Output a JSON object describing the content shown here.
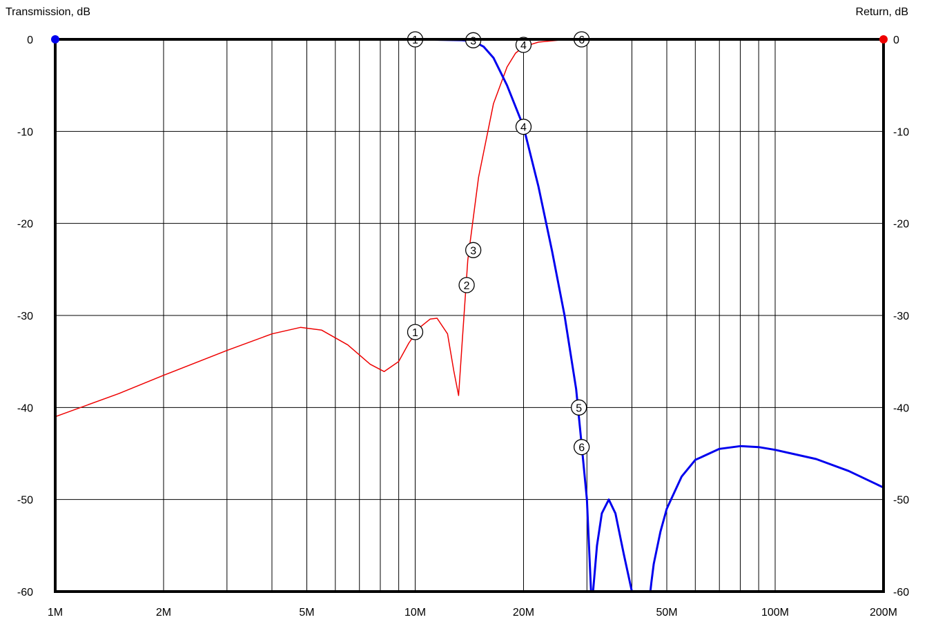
{
  "chart_data": {
    "type": "line",
    "title": "",
    "x_scale": "log",
    "xlim": [
      1000000,
      200000000
    ],
    "ylim": [
      -60,
      0
    ],
    "left_axis_label": "Transmission, dB",
    "right_axis_label": "Return, dB",
    "grid": true,
    "x_tick_values": [
      1000000,
      2000000,
      5000000,
      10000000,
      20000000,
      50000000,
      100000000,
      200000000
    ],
    "x_tick_labels": [
      "1M",
      "2M",
      "5M",
      "10M",
      "20M",
      "50M",
      "100M",
      "200M"
    ],
    "y_tick_values": [
      0,
      -10,
      -20,
      -30,
      -40,
      -50,
      -60
    ],
    "y_tick_labels": [
      "0",
      "-10",
      "-20",
      "-30",
      "-40",
      "-50",
      "-60"
    ],
    "series": [
      {
        "name": "transmission",
        "color": "#0000ee",
        "axis": "left",
        "x": [
          1000000,
          10000000,
          12000000,
          13500000,
          14500000,
          15500000,
          16500000,
          18000000,
          20000000,
          22000000,
          24000000,
          26000000,
          28000000,
          29000000,
          30000000,
          30800000,
          31200000,
          32000000,
          33000000,
          34500000,
          36000000,
          38000000,
          40000000,
          41000000,
          41200000,
          45000000,
          45300000,
          46000000,
          48000000,
          50000000,
          55000000,
          60000000,
          70000000,
          80000000,
          90000000,
          100000000,
          130000000,
          160000000,
          200000000
        ],
        "y": [
          0,
          0,
          -0.05,
          -0.1,
          -0.2,
          -0.8,
          -2,
          -5,
          -9.5,
          -16,
          -23,
          -30,
          -38,
          -44,
          -50,
          -60,
          -60,
          -55,
          -51.5,
          -50,
          -51.5,
          -56,
          -60,
          -60,
          -60,
          -60,
          -59,
          -57,
          -53.5,
          -51,
          -47.5,
          -45.7,
          -44.5,
          -44.2,
          -44.3,
          -44.6,
          -45.6,
          -46.9,
          -48.7
        ]
      },
      {
        "name": "return",
        "color": "#ee0000",
        "axis": "right",
        "x": [
          1000000,
          1500000,
          2000000,
          3000000,
          4000000,
          4800000,
          5500000,
          6500000,
          7500000,
          8200000,
          9000000,
          9600000,
          10300000,
          11000000,
          11500000,
          12300000,
          12800000,
          13200000,
          13500000,
          14000000,
          15000000,
          16500000,
          18000000,
          19000000,
          20000000,
          22000000,
          25000000,
          30000000,
          200000000
        ],
        "y": [
          -41,
          -38.5,
          -36.5,
          -33.8,
          -32,
          -31.3,
          -31.6,
          -33.2,
          -35.3,
          -36.1,
          -35,
          -33,
          -31.3,
          -30.4,
          -30.3,
          -32,
          -36,
          -38.7,
          -33,
          -24,
          -15,
          -7,
          -3,
          -1.5,
          -0.8,
          -0.3,
          -0.1,
          0,
          0
        ]
      }
    ],
    "markers": [
      {
        "label": "1",
        "x": 10000000,
        "y": 0
      },
      {
        "label": "3",
        "x": 14500000,
        "y": -0.1
      },
      {
        "label": "4",
        "x": 20000000,
        "y": -9.5
      },
      {
        "label": "5",
        "x": 28500000,
        "y": -40
      },
      {
        "label": "6",
        "x": 29000000,
        "y": -44.3
      },
      {
        "label": "1",
        "x": 10000000,
        "y": -31.8
      },
      {
        "label": "2",
        "x": 13900000,
        "y": -26.7
      },
      {
        "label": "3",
        "x": 14500000,
        "y": -22.9
      },
      {
        "label": "4",
        "x": 20000000,
        "y": -0.6
      },
      {
        "label": "6",
        "x": 29000000,
        "y": 0
      }
    ]
  }
}
